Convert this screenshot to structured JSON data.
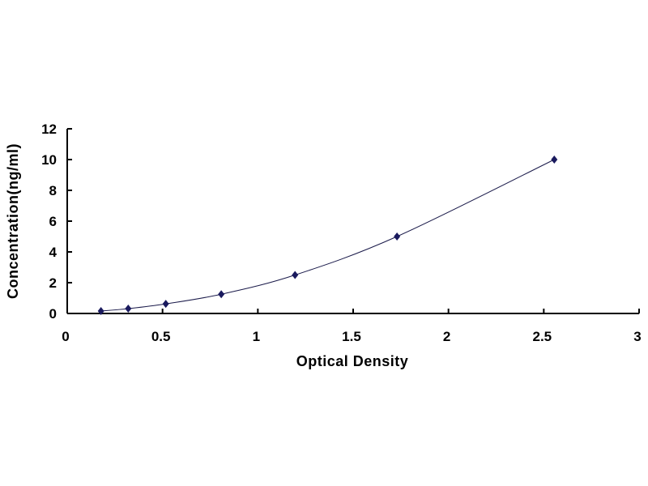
{
  "chart_data": {
    "type": "scatter",
    "title": "",
    "xlabel": "Optical Density",
    "ylabel": "Concentration(ng/ml)",
    "xlim": [
      0,
      3
    ],
    "ylim": [
      0,
      12
    ],
    "xticks": [
      "0",
      "0.5",
      "1",
      "1.5",
      "2",
      "2.5",
      "3"
    ],
    "yticks": [
      "0",
      "2",
      "4",
      "6",
      "8",
      "10",
      "12"
    ],
    "grid": false,
    "legend": "none",
    "trendline": "smooth curve",
    "marker": "diamond",
    "colors": {
      "marker": "#1a1a5e",
      "line": "#1a1a4a",
      "axis": "#000000"
    },
    "series": [
      {
        "x": [
          0.177,
          0.32,
          0.517,
          0.808,
          1.195,
          1.73,
          2.555
        ],
        "y": [
          0.156,
          0.313,
          0.625,
          1.25,
          2.5,
          5,
          10
        ]
      }
    ]
  }
}
